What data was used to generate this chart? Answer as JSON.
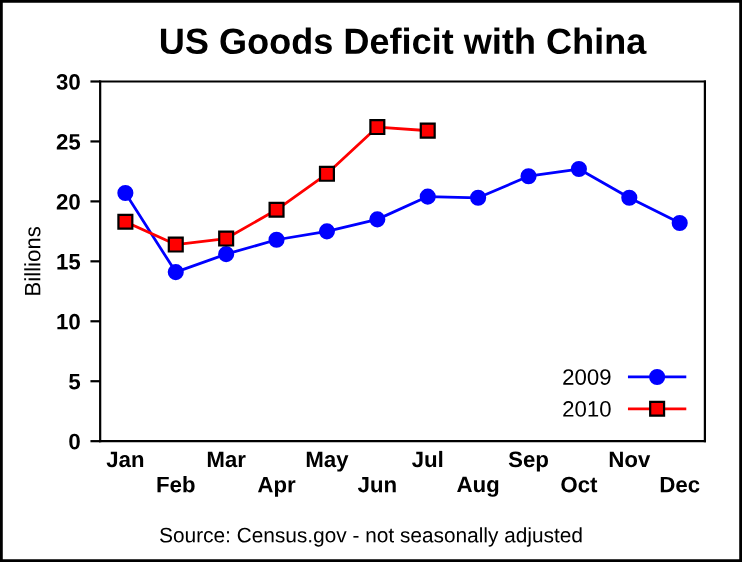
{
  "chart_data": {
    "type": "line",
    "title": "US Goods Deficit with China",
    "ylabel": "Billions",
    "categories": [
      "Jan",
      "Feb",
      "Mar",
      "Apr",
      "May",
      "Jun",
      "Jul",
      "Aug",
      "Sep",
      "Oct",
      "Nov",
      "Dec"
    ],
    "series": [
      {
        "name": "2009",
        "color": "#0000ff",
        "marker": "circle",
        "values": [
          20.7,
          14.1,
          15.6,
          16.8,
          17.5,
          18.5,
          20.4,
          20.3,
          22.1,
          22.7,
          20.3,
          18.2
        ]
      },
      {
        "name": "2010",
        "color": "#ff0000",
        "marker": "square",
        "values": [
          18.3,
          16.4,
          16.9,
          19.3,
          22.3,
          26.2,
          25.9,
          null,
          null,
          null,
          null,
          null
        ]
      }
    ],
    "ylim": [
      0,
      30
    ],
    "yticks": [
      0,
      5,
      10,
      15,
      20,
      25,
      30
    ],
    "grid": false,
    "legend": "bottom right",
    "annotations": [
      "Source: Census.gov - not seasonally adjusted"
    ]
  }
}
